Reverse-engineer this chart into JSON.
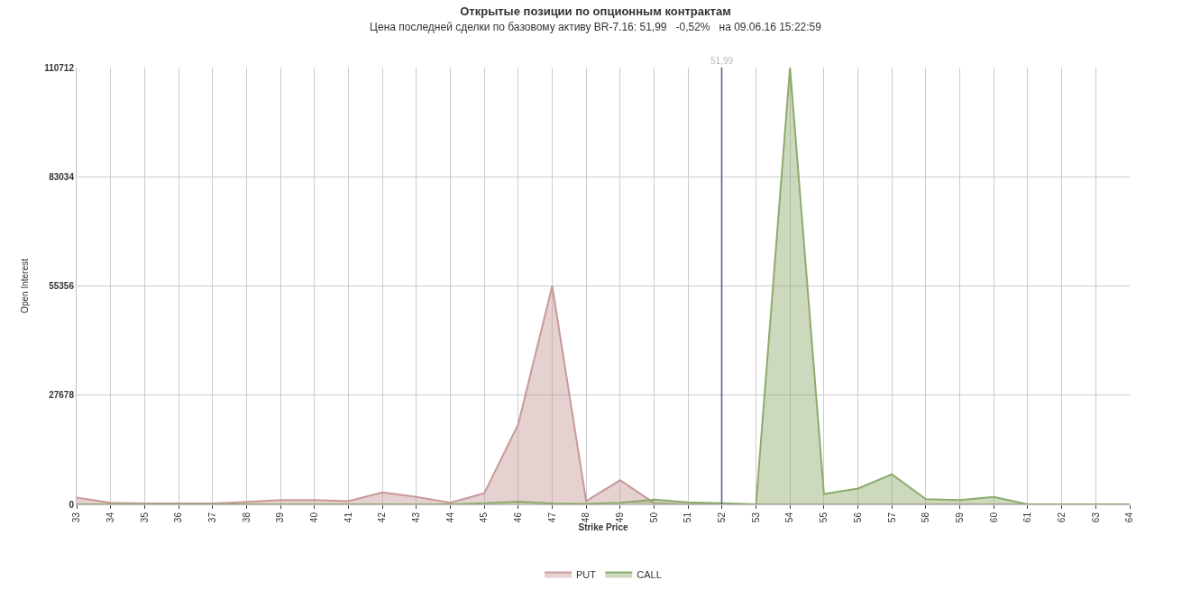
{
  "chart_data": {
    "type": "area",
    "title": "Открытые позиции по опционным контрактам",
    "subtitle": "Цена последней сделки по базовому активу BR-7.16: 51,99   -0,52%   на 09.06.16 15:22:59",
    "xlabel": "Strike Price",
    "ylabel": "Open Interest",
    "x": [
      33,
      34,
      35,
      36,
      37,
      38,
      39,
      40,
      41,
      42,
      43,
      44,
      45,
      46,
      47,
      48,
      49,
      50,
      51,
      52,
      53,
      54,
      55,
      56,
      57,
      58,
      59,
      60,
      61,
      62,
      63,
      64
    ],
    "series": [
      {
        "name": "PUT",
        "color": "#c8999a",
        "values": [
          1700,
          400,
          200,
          200,
          200,
          600,
          1100,
          1100,
          800,
          3000,
          1900,
          400,
          2800,
          20300,
          55356,
          850,
          6100,
          300,
          0,
          0,
          0,
          0,
          0,
          0,
          0,
          0,
          0,
          0,
          0,
          0,
          0,
          0
        ]
      },
      {
        "name": "CALL",
        "color": "#8dab6c",
        "values": [
          0,
          0,
          0,
          0,
          0,
          0,
          0,
          0,
          0,
          0,
          0,
          0,
          300,
          700,
          200,
          100,
          400,
          1200,
          500,
          300,
          0,
          110712,
          2600,
          4000,
          7600,
          1300,
          1100,
          1900,
          0,
          0,
          0,
          0
        ]
      }
    ],
    "xlim": [
      33,
      64
    ],
    "xticks": [
      33,
      34,
      35,
      36,
      37,
      38,
      39,
      40,
      41,
      42,
      43,
      44,
      45,
      46,
      47,
      48,
      49,
      50,
      51,
      52,
      53,
      54,
      55,
      56,
      57,
      58,
      59,
      60,
      61,
      62,
      63,
      64
    ],
    "ylim": [
      0,
      110712
    ],
    "yticks": [
      0,
      27678,
      55356,
      83034,
      110712
    ],
    "ref_lines": [
      {
        "axis": "x",
        "value": 51.99,
        "label": "51,99",
        "color": "#4a5f8a"
      }
    ],
    "grid": true,
    "legend": "bottom",
    "marker": "none",
    "line_style": "solid"
  }
}
